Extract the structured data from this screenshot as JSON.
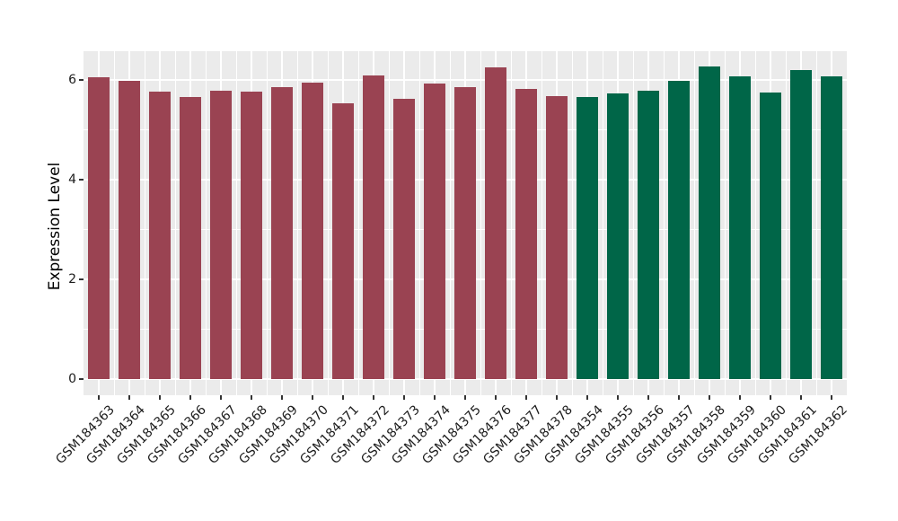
{
  "chart_data": {
    "type": "bar",
    "title": "",
    "xlabel": "",
    "ylabel": "Expression Level",
    "yticks": [
      0,
      2,
      4,
      6
    ],
    "yminorticks": [
      1,
      3,
      5
    ],
    "ylim": [
      0,
      6.6
    ],
    "grid": true,
    "legend_position": "none",
    "panel_background": "#EBEBEB",
    "gridline_color": "#FFFFFF",
    "tick_color": "#333333",
    "axis_text_color": "#1C1C1C",
    "groups": [
      {
        "name": "samples-GSM184363-GSM184378",
        "color": "#9A4352"
      },
      {
        "name": "samples-GSM184354-GSM184362",
        "color": "#006648"
      }
    ],
    "bars": [
      {
        "label": "GSM184363",
        "value": 6.05,
        "group": 0
      },
      {
        "label": "GSM184364",
        "value": 5.99,
        "group": 0
      },
      {
        "label": "GSM184365",
        "value": 5.77,
        "group": 0
      },
      {
        "label": "GSM184366",
        "value": 5.65,
        "group": 0
      },
      {
        "label": "GSM184367",
        "value": 5.79,
        "group": 0
      },
      {
        "label": "GSM184368",
        "value": 5.77,
        "group": 0
      },
      {
        "label": "GSM184369",
        "value": 5.85,
        "group": 0
      },
      {
        "label": "GSM184370",
        "value": 5.95,
        "group": 0
      },
      {
        "label": "GSM184371",
        "value": 5.53,
        "group": 0
      },
      {
        "label": "GSM184372",
        "value": 6.09,
        "group": 0
      },
      {
        "label": "GSM184373",
        "value": 5.62,
        "group": 0
      },
      {
        "label": "GSM184374",
        "value": 5.92,
        "group": 0
      },
      {
        "label": "GSM184375",
        "value": 5.85,
        "group": 0
      },
      {
        "label": "GSM184376",
        "value": 6.26,
        "group": 0
      },
      {
        "label": "GSM184377",
        "value": 5.82,
        "group": 0
      },
      {
        "label": "GSM184378",
        "value": 5.68,
        "group": 0
      },
      {
        "label": "GSM184354",
        "value": 5.66,
        "group": 1
      },
      {
        "label": "GSM184355",
        "value": 5.73,
        "group": 1
      },
      {
        "label": "GSM184356",
        "value": 5.78,
        "group": 1
      },
      {
        "label": "GSM184357",
        "value": 5.99,
        "group": 1
      },
      {
        "label": "GSM184358",
        "value": 6.27,
        "group": 1
      },
      {
        "label": "GSM184359",
        "value": 6.08,
        "group": 1
      },
      {
        "label": "GSM184360",
        "value": 5.74,
        "group": 1
      },
      {
        "label": "GSM184361",
        "value": 6.2,
        "group": 1
      },
      {
        "label": "GSM184362",
        "value": 6.07,
        "group": 1
      }
    ]
  }
}
